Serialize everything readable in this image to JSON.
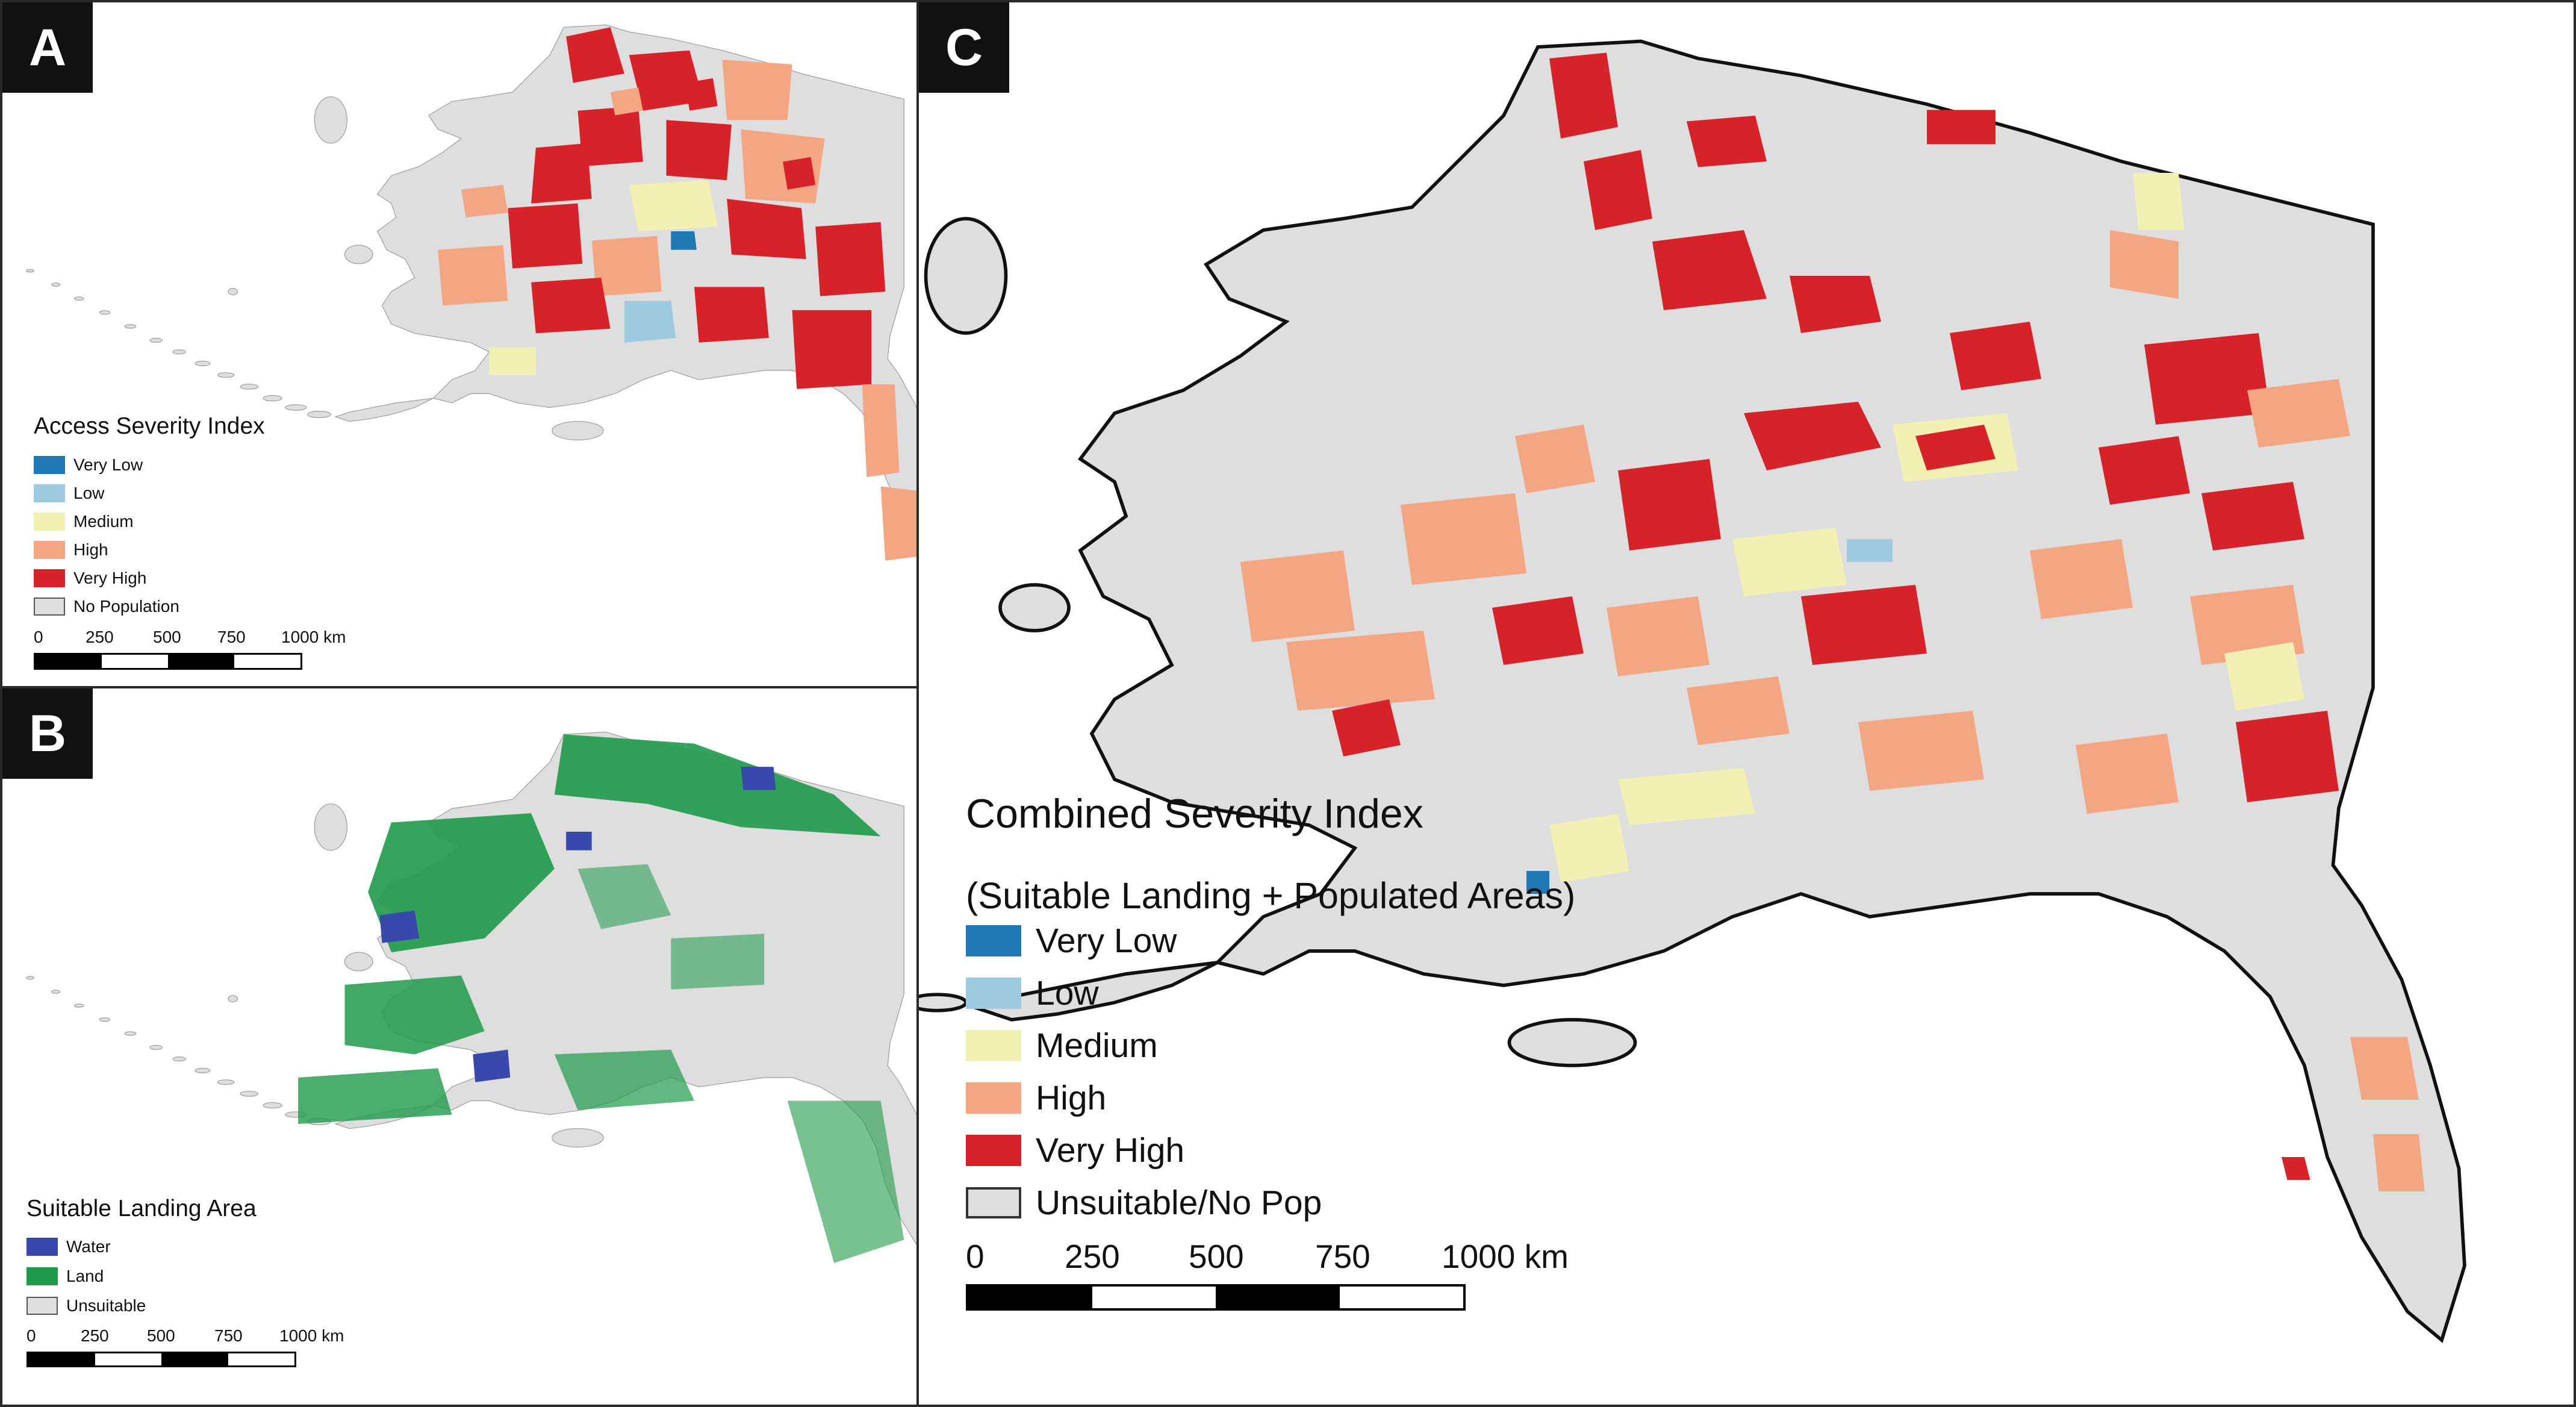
{
  "colors": {
    "very_low": "#1f78b4",
    "low": "#9ecae1",
    "medium": "#f3f0b3",
    "high": "#f4a582",
    "very_high": "#d7222a",
    "no_pop": "#dedede",
    "water": "#3949ab",
    "land": "#1e9a4a",
    "unsuitable": "#dedede",
    "outline": "#111111"
  },
  "panels": {
    "a": {
      "tag": "A",
      "legend_title": "Access Severity Index",
      "legend_items": [
        {
          "label": "Very Low",
          "color": "#1f78b4"
        },
        {
          "label": "Low",
          "color": "#9ecae1"
        },
        {
          "label": "Medium",
          "color": "#f3f0b3"
        },
        {
          "label": "High",
          "color": "#f4a582"
        },
        {
          "label": "Very High",
          "color": "#d7222a"
        },
        {
          "label": "No Population",
          "color": "#dedede"
        }
      ],
      "scale_labels": [
        "0",
        "250",
        "500",
        "750",
        "1000 km"
      ]
    },
    "b": {
      "tag": "B",
      "legend_title": "Suitable Landing Area",
      "legend_items": [
        {
          "label": "Water",
          "color": "#3949ab"
        },
        {
          "label": "Land",
          "color": "#1e9a4a"
        },
        {
          "label": "Unsuitable",
          "color": "#dedede"
        }
      ],
      "scale_labels": [
        "0",
        "250",
        "500",
        "750",
        "1000 km"
      ]
    },
    "c": {
      "tag": "C",
      "legend_title": "Combined Severity Index",
      "legend_subtitle": "(Suitable Landing + Populated Areas)",
      "legend_items": [
        {
          "label": "Very Low",
          "color": "#1f78b4"
        },
        {
          "label": "Low",
          "color": "#9ecae1"
        },
        {
          "label": "Medium",
          "color": "#f3f0b3"
        },
        {
          "label": "High",
          "color": "#f4a582"
        },
        {
          "label": "Very High",
          "color": "#d7222a"
        },
        {
          "label": "Unsuitable/No Pop",
          "color": "#dedede"
        }
      ],
      "scale_labels": [
        "0",
        "250",
        "500",
        "750",
        "1000 km"
      ]
    }
  }
}
